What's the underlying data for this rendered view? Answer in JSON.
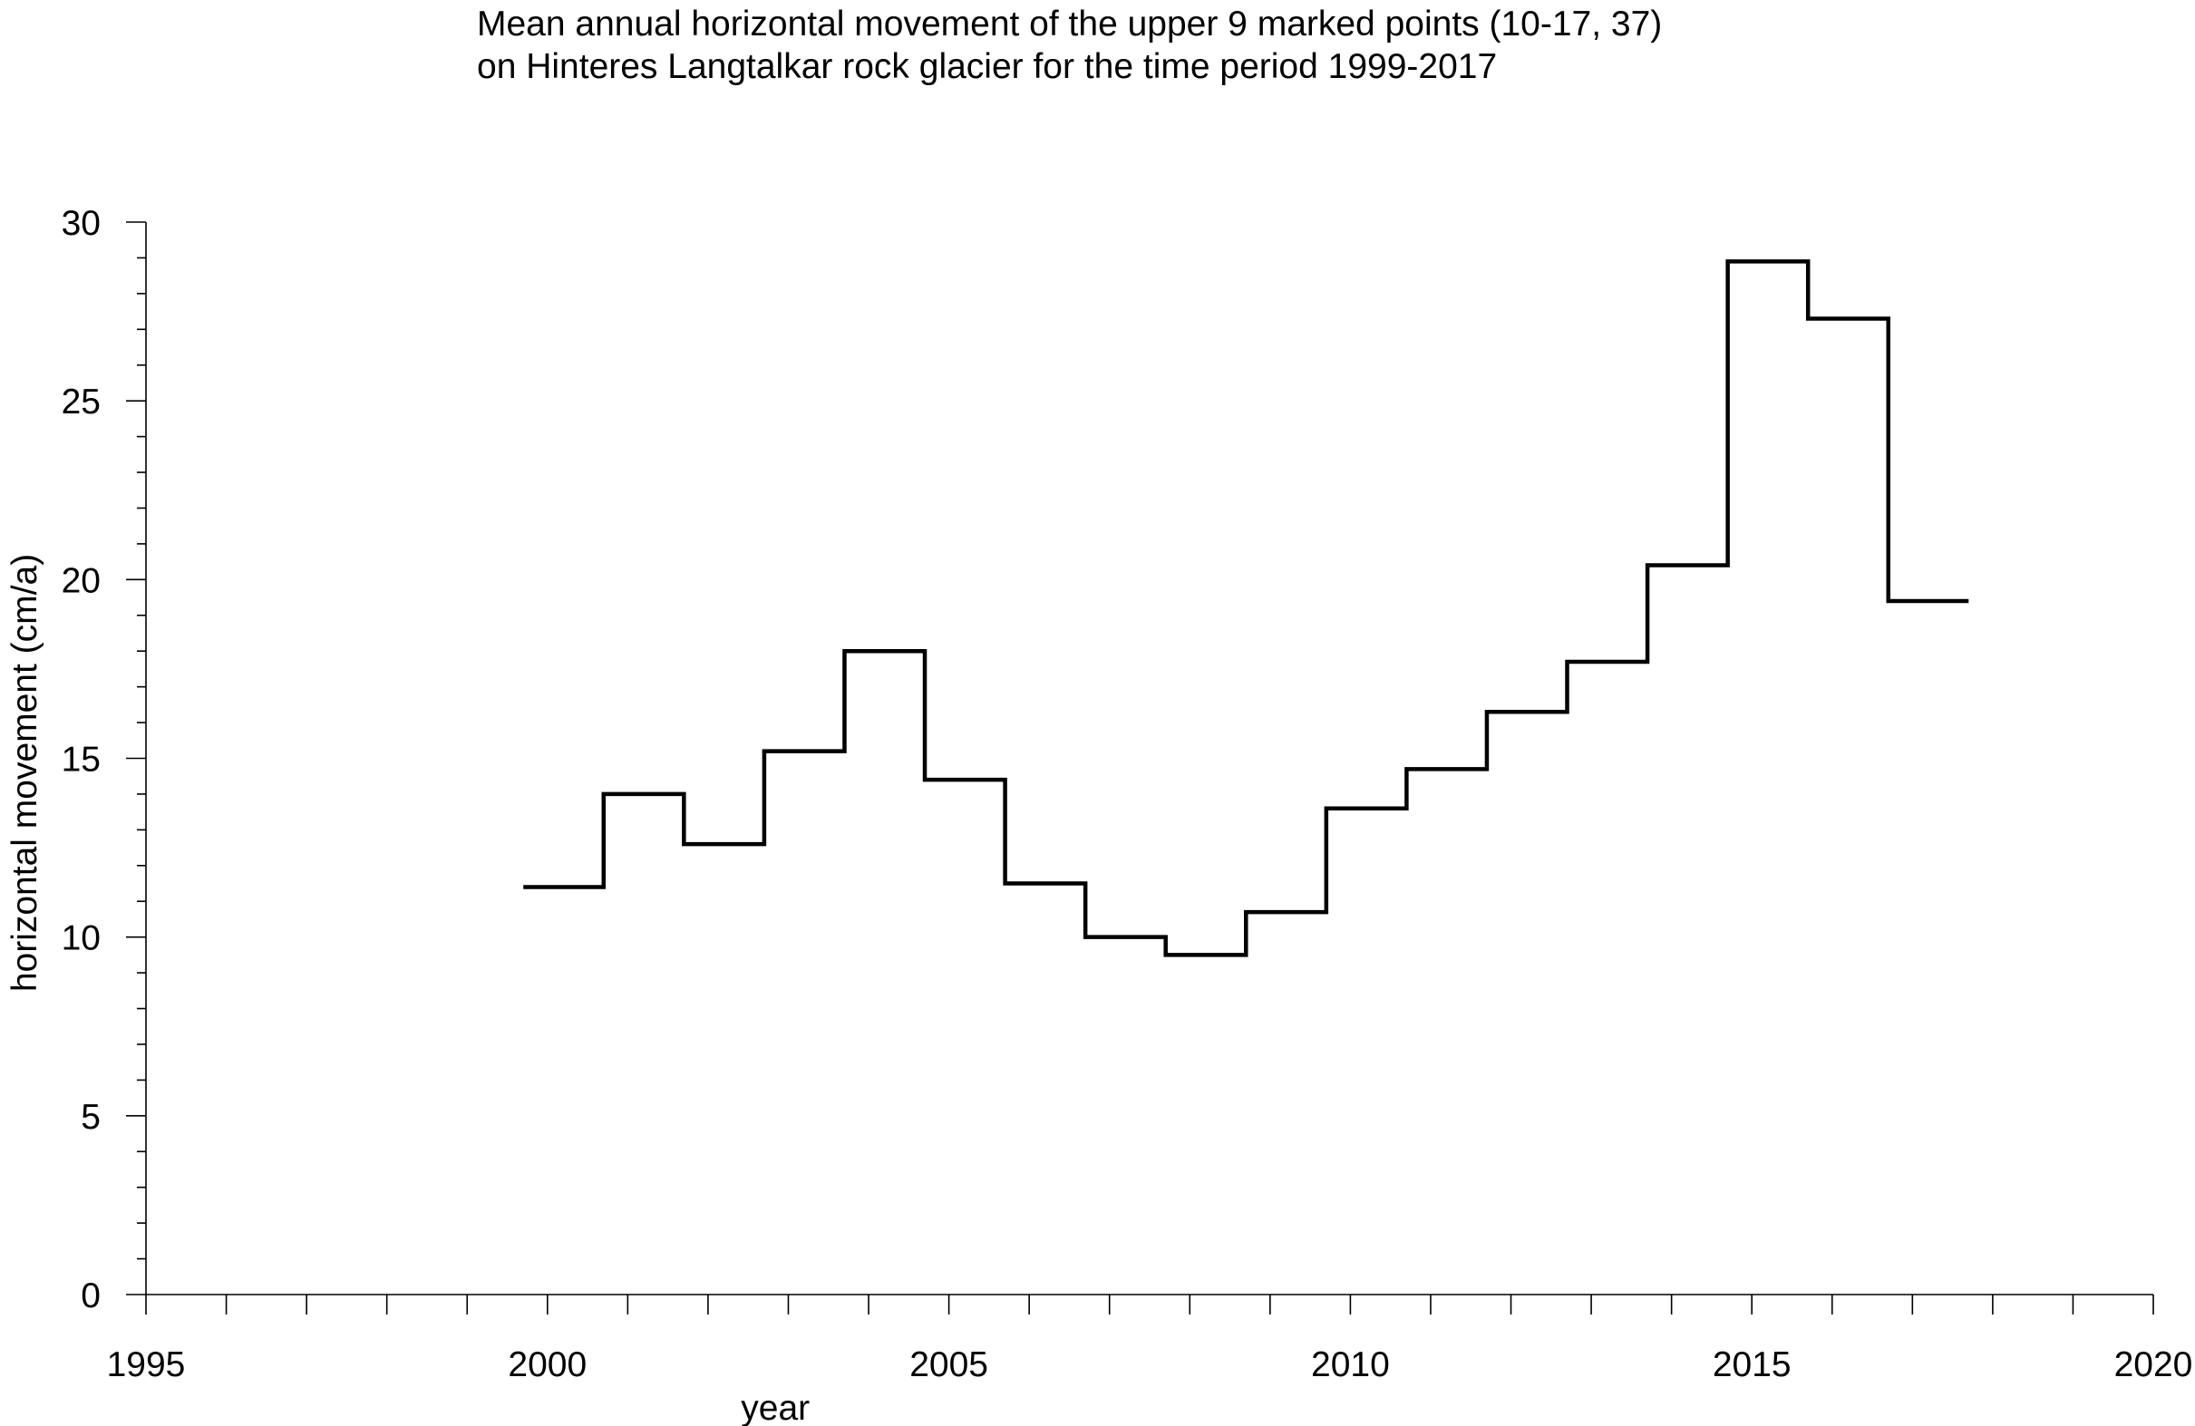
{
  "chart_data": {
    "type": "line",
    "step": "post",
    "title": [
      "Mean annual horizontal movement of the upper 9 marked points (10-17, 37)",
      "on Hinteres Langtalkar rock glacier for the time period 1999-2017"
    ],
    "xlabel": "year",
    "ylabel": "horizontal movement (cm/a)",
    "xlim": [
      1995,
      2020
    ],
    "ylim": [
      0,
      30
    ],
    "x_ticks": [
      1995,
      2000,
      2005,
      2010,
      2015,
      2020
    ],
    "y_ticks": [
      0,
      5,
      10,
      15,
      20,
      25,
      30
    ],
    "x_tick_labels": [
      "1995",
      "2000",
      "2005",
      "2010",
      "2015",
      "2020"
    ],
    "y_tick_labels": [
      "0",
      "5",
      "10",
      "15",
      "20",
      "25",
      "30"
    ],
    "x_minor_step": 1,
    "y_minor_step": 1,
    "grid": false,
    "legend": "none",
    "series": [
      {
        "color": "#000000",
        "x": [
          1999.7,
          2000.7,
          2001.7,
          2002.7,
          2003.7,
          2004.7,
          2005.7,
          2006.7,
          2007.7,
          2008.7,
          2009.7,
          2010.7,
          2011.7,
          2012.7,
          2013.7,
          2014.7,
          2015.7,
          2016.7,
          2017.7
        ],
        "values": [
          11.4,
          14.0,
          12.6,
          15.2,
          18.0,
          14.4,
          11.5,
          10.0,
          9.5,
          10.7,
          13.6,
          14.7,
          16.3,
          17.7,
          20.4,
          28.9,
          27.3,
          19.4,
          19.4
        ]
      }
    ]
  }
}
